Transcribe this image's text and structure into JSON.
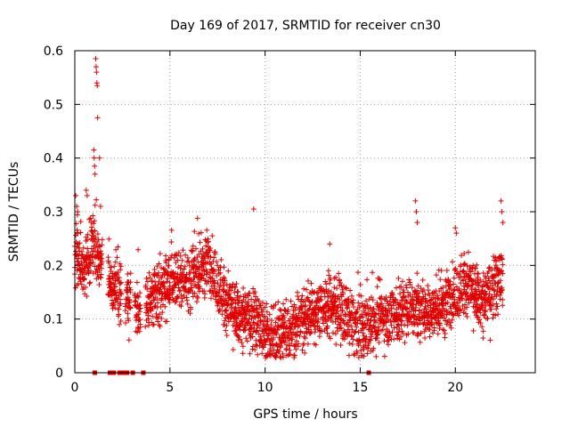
{
  "chart_data": {
    "type": "scatter",
    "title": "Day 169 of 2017, SRMTID for receiver cn30",
    "xlabel": "GPS time / hours",
    "ylabel": "SRMTID / TECUs",
    "xlim": [
      0,
      24.2
    ],
    "ylim": [
      0,
      0.6
    ],
    "xticks": [
      0,
      5,
      10,
      15,
      20
    ],
    "xtick_labels": [
      "0",
      "5",
      "10",
      "15",
      "20"
    ],
    "yticks": [
      0,
      0.1,
      0.2,
      0.3,
      0.4,
      0.5,
      0.6
    ],
    "ytick_labels": [
      "0",
      "0.1",
      "0.2",
      "0.3",
      "0.4",
      "0.5",
      "0.6"
    ],
    "grid": true,
    "marker": "+",
    "color": "#e00000",
    "trend": {
      "x": [
        0,
        0.5,
        1.0,
        1.5,
        2.0,
        2.5,
        3.0,
        3.5,
        4.0,
        4.5,
        5.0,
        5.5,
        6.0,
        6.5,
        7.0,
        7.5,
        8.0,
        8.5,
        9.0,
        9.5,
        10.0,
        10.5,
        11.0,
        11.5,
        12.0,
        12.5,
        13.0,
        13.5,
        14.0,
        14.5,
        15.0,
        15.5,
        16.0,
        16.5,
        17.0,
        17.5,
        18.0,
        18.5,
        19.0,
        19.5,
        20.0,
        20.5,
        21.0,
        21.5,
        22.0,
        22.5
      ],
      "y": [
        0.22,
        0.2,
        0.24,
        0.2,
        0.16,
        0.15,
        0.13,
        0.12,
        0.14,
        0.15,
        0.17,
        0.18,
        0.17,
        0.19,
        0.21,
        0.17,
        0.13,
        0.11,
        0.1,
        0.1,
        0.07,
        0.06,
        0.08,
        0.08,
        0.1,
        0.11,
        0.12,
        0.13,
        0.11,
        0.09,
        0.08,
        0.09,
        0.1,
        0.11,
        0.11,
        0.12,
        0.12,
        0.11,
        0.12,
        0.13,
        0.15,
        0.17,
        0.15,
        0.13,
        0.16,
        0.18
      ]
    },
    "spikes": [
      {
        "x": 0.05,
        "y": 0.33
      },
      {
        "x": 0.1,
        "y": 0.31
      },
      {
        "x": 0.15,
        "y": 0.3
      },
      {
        "x": 0.6,
        "y": 0.34
      },
      {
        "x": 0.65,
        "y": 0.33
      },
      {
        "x": 1.0,
        "y": 0.415
      },
      {
        "x": 1.02,
        "y": 0.4
      },
      {
        "x": 1.04,
        "y": 0.385
      },
      {
        "x": 1.06,
        "y": 0.37
      },
      {
        "x": 1.1,
        "y": 0.585
      },
      {
        "x": 1.12,
        "y": 0.57
      },
      {
        "x": 1.14,
        "y": 0.56
      },
      {
        "x": 1.16,
        "y": 0.54
      },
      {
        "x": 1.18,
        "y": 0.535
      },
      {
        "x": 1.2,
        "y": 0.475
      },
      {
        "x": 1.3,
        "y": 0.4
      },
      {
        "x": 1.35,
        "y": 0.31
      },
      {
        "x": 9.4,
        "y": 0.305
      },
      {
        "x": 13.4,
        "y": 0.24
      },
      {
        "x": 17.9,
        "y": 0.32
      },
      {
        "x": 17.95,
        "y": 0.3
      },
      {
        "x": 18.0,
        "y": 0.28
      },
      {
        "x": 20.0,
        "y": 0.27
      },
      {
        "x": 20.05,
        "y": 0.26
      },
      {
        "x": 22.4,
        "y": 0.32
      },
      {
        "x": 22.45,
        "y": 0.3
      },
      {
        "x": 22.5,
        "y": 0.28
      }
    ],
    "zero_points": [
      1.05,
      1.85,
      2.05,
      2.35,
      2.55,
      2.75,
      3.05,
      3.6,
      15.45
    ]
  }
}
